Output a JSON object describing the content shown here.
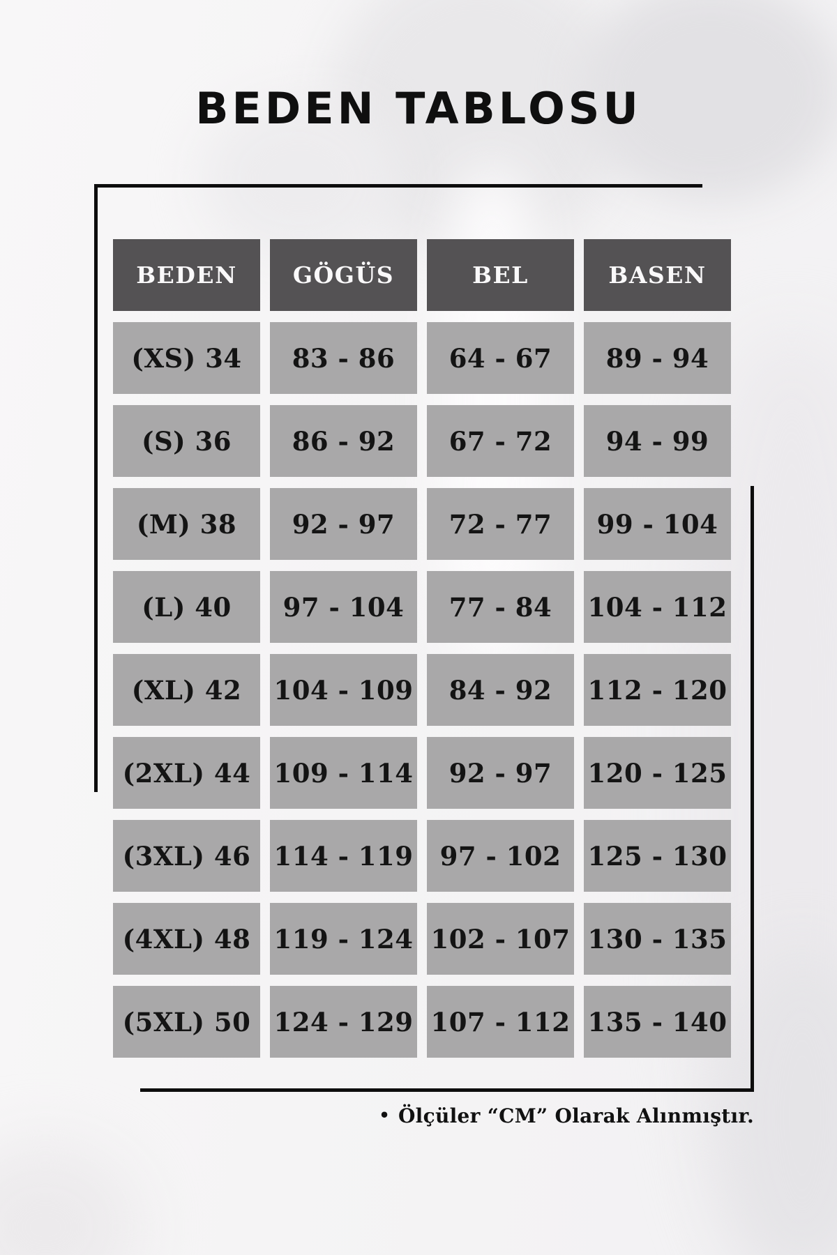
{
  "title": "BEDEN TABLOSU",
  "table": {
    "headers": [
      "BEDEN",
      "GÖGÜS",
      "BEL",
      "BASEN"
    ],
    "rows": [
      [
        "(XS) 34",
        "83 - 86",
        "64 - 67",
        "89 - 94"
      ],
      [
        "(S) 36",
        "86 - 92",
        "67 - 72",
        "94 - 99"
      ],
      [
        "(M) 38",
        "92 - 97",
        "72 - 77",
        "99 - 104"
      ],
      [
        "(L) 40",
        "97 - 104",
        "77 - 84",
        "104 - 112"
      ],
      [
        "(XL) 42",
        "104 - 109",
        "84 - 92",
        "112 - 120"
      ],
      [
        "(2XL) 44",
        "109 - 114",
        "92 - 97",
        "120 - 125"
      ],
      [
        "(3XL) 46",
        "114 - 119",
        "97 - 102",
        "125 - 130"
      ],
      [
        "(4XL) 48",
        "119 - 124",
        "102 - 107",
        "130 - 135"
      ],
      [
        "(5XL) 50",
        "124 - 129",
        "107 - 112",
        "135 - 140"
      ]
    ]
  },
  "footer": {
    "bullet": "•",
    "note": "Ölçüler “CM” Olarak Alınmıştır."
  },
  "colors": {
    "page_background": "#f5f4f5",
    "header_cell": "#545254",
    "header_text": "#faf9fa",
    "data_cell": "#a9a8a9",
    "data_text": "#141414",
    "frame_line": "#0d0d0d",
    "title_text": "#0f0f0f"
  }
}
